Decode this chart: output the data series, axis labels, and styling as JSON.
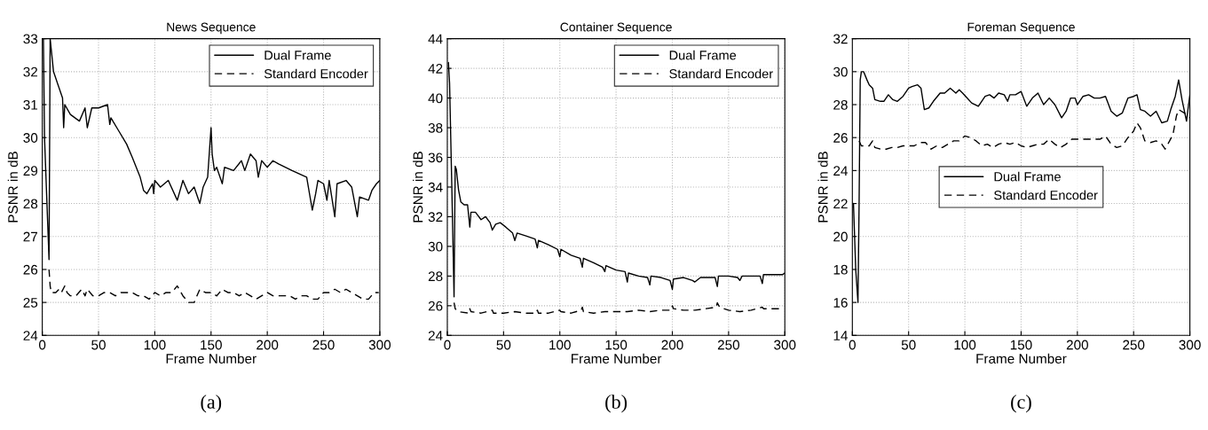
{
  "chart_data": [
    {
      "type": "line",
      "title": "News Sequence",
      "xlabel": "Frame Number",
      "ylabel": "PSNR in dB",
      "annotations": [
        "(a)"
      ],
      "xlim": [
        0,
        300
      ],
      "ylim": [
        24,
        33
      ],
      "xticks": [
        0,
        50,
        100,
        150,
        200,
        250,
        300
      ],
      "yticks": [
        24,
        25,
        26,
        27,
        28,
        29,
        30,
        31,
        32,
        33
      ],
      "grid": true,
      "legend": "top right",
      "marker": "none",
      "series": [
        {
          "name": "Dual Frame",
          "color": "#000000",
          "line_style": "solid",
          "x": [
            1,
            2,
            6,
            7,
            10,
            14,
            18,
            19,
            20,
            25,
            33,
            38,
            40,
            44,
            50,
            58,
            60,
            61,
            68,
            75,
            80,
            87,
            90,
            93,
            98,
            99,
            100,
            105,
            112,
            120,
            125,
            130,
            135,
            140,
            143,
            147,
            150,
            151,
            153,
            155,
            160,
            162,
            170,
            177,
            180,
            185,
            190,
            192,
            195,
            200,
            205,
            210,
            222,
            235,
            240,
            243,
            245,
            250,
            253,
            255,
            260,
            262,
            270,
            275,
            280,
            282,
            290,
            293,
            297,
            300
          ],
          "values": [
            33,
            30,
            26.3,
            33,
            32,
            31.6,
            31.2,
            30.3,
            31,
            30.7,
            30.5,
            30.9,
            30.3,
            30.9,
            30.9,
            31,
            30.4,
            30.6,
            30.2,
            29.8,
            29.4,
            28.8,
            28.4,
            28.3,
            28.6,
            28.3,
            28.7,
            28.5,
            28.7,
            28.1,
            28.7,
            28.3,
            28.5,
            28.0,
            28.5,
            28.8,
            30.3,
            29.5,
            29.0,
            29.1,
            28.6,
            29.1,
            29.0,
            29.3,
            29.0,
            29.5,
            29.3,
            28.8,
            29.3,
            29.1,
            29.3,
            29.2,
            29.0,
            28.8,
            27.8,
            28.3,
            28.7,
            28.6,
            28.1,
            28.7,
            27.6,
            28.6,
            28.7,
            28.5,
            27.6,
            28.2,
            28.1,
            28.4,
            28.6,
            28.7
          ]
        },
        {
          "name": "Standard Encoder",
          "color": "#000000",
          "line_style": "dashed",
          "x": [
            6,
            7,
            8,
            12,
            15,
            17,
            20,
            22,
            25,
            30,
            35,
            38,
            40,
            45,
            50,
            55,
            60,
            65,
            70,
            75,
            80,
            85,
            90,
            95,
            100,
            105,
            110,
            115,
            120,
            125,
            130,
            135,
            140,
            145,
            150,
            155,
            160,
            165,
            170,
            175,
            180,
            185,
            190,
            195,
            200,
            205,
            210,
            215,
            220,
            225,
            230,
            235,
            240,
            245,
            250,
            255,
            260,
            265,
            270,
            275,
            280,
            285,
            290,
            295,
            299
          ],
          "values": [
            26.0,
            25.5,
            25.3,
            25.3,
            25.4,
            25.3,
            25.5,
            25.3,
            25.2,
            25.2,
            25.4,
            25.2,
            25.4,
            25.2,
            25.2,
            25.3,
            25.3,
            25.2,
            25.3,
            25.3,
            25.3,
            25.2,
            25.2,
            25.1,
            25.3,
            25.2,
            25.3,
            25.3,
            25.5,
            25.2,
            25.0,
            25.0,
            25.4,
            25.3,
            25.3,
            25.2,
            25.4,
            25.3,
            25.3,
            25.2,
            25.3,
            25.2,
            25.1,
            25.2,
            25.3,
            25.2,
            25.2,
            25.2,
            25.2,
            25.1,
            25.2,
            25.2,
            25.1,
            25.1,
            25.3,
            25.3,
            25.4,
            25.3,
            25.4,
            25.3,
            25.2,
            25.1,
            25.1,
            25.3,
            25.3
          ]
        }
      ]
    },
    {
      "type": "line",
      "title": "Container Sequence",
      "xlabel": "Frame Number",
      "ylabel": "PSNR in dB",
      "annotations": [
        "(b)"
      ],
      "xlim": [
        0,
        300
      ],
      "ylim": [
        24,
        44
      ],
      "xticks": [
        0,
        50,
        100,
        150,
        200,
        250,
        300
      ],
      "yticks": [
        24,
        26,
        28,
        30,
        32,
        34,
        36,
        38,
        40,
        42,
        44
      ],
      "grid": true,
      "legend": "top right",
      "marker": "none",
      "series": [
        {
          "name": "Dual Frame",
          "color": "#000000",
          "line_style": "solid",
          "x": [
            1,
            2,
            4,
            6,
            7,
            8,
            10,
            12,
            15,
            18,
            20,
            21,
            25,
            30,
            34,
            38,
            40,
            43,
            47,
            52,
            58,
            60,
            62,
            70,
            78,
            80,
            81,
            90,
            98,
            100,
            101,
            110,
            118,
            120,
            121,
            130,
            138,
            140,
            141,
            150,
            158,
            160,
            161,
            170,
            178,
            180,
            181,
            190,
            198,
            200,
            201,
            210,
            218,
            220,
            225,
            238,
            240,
            241,
            250,
            258,
            260,
            262,
            270,
            278,
            280,
            281,
            290,
            298,
            300
          ],
          "values": [
            42.4,
            41,
            34,
            26.6,
            35.4,
            35.2,
            33.8,
            33.0,
            32.8,
            32.8,
            31.3,
            32.3,
            32.3,
            31.8,
            32.0,
            31.6,
            31.1,
            31.5,
            31.6,
            31.3,
            30.9,
            30.4,
            30.9,
            30.7,
            30.5,
            29.9,
            30.4,
            30.1,
            29.8,
            29.3,
            29.8,
            29.4,
            29.2,
            28.6,
            29.2,
            28.9,
            28.6,
            28.3,
            28.7,
            28.4,
            28.3,
            27.6,
            28.2,
            28.0,
            27.9,
            27.4,
            28.0,
            27.9,
            27.7,
            27.1,
            27.8,
            27.9,
            27.7,
            27.6,
            27.9,
            27.9,
            27.3,
            28.0,
            28.0,
            27.9,
            27.7,
            28.0,
            28.0,
            28.0,
            27.5,
            28.1,
            28.1,
            28.1,
            28.2
          ]
        },
        {
          "name": "Standard Encoder",
          "color": "#000000",
          "line_style": "dashed",
          "x": [
            6,
            7,
            10,
            19,
            20,
            21,
            30,
            40,
            41,
            50,
            60,
            70,
            79,
            80,
            81,
            90,
            100,
            101,
            110,
            119,
            120,
            121,
            130,
            140,
            150,
            160,
            170,
            180,
            190,
            199,
            200,
            201,
            210,
            220,
            230,
            239,
            240,
            242,
            250,
            260,
            270,
            280,
            281,
            290,
            299
          ],
          "values": [
            26.2,
            25.8,
            25.6,
            25.5,
            25.8,
            25.6,
            25.5,
            25.7,
            25.5,
            25.5,
            25.6,
            25.5,
            25.5,
            25.7,
            25.5,
            25.5,
            25.7,
            25.6,
            25.5,
            25.7,
            25.9,
            25.6,
            25.5,
            25.6,
            25.6,
            25.6,
            25.7,
            25.6,
            25.7,
            25.7,
            26.0,
            25.8,
            25.7,
            25.7,
            25.8,
            25.9,
            26.2,
            25.9,
            25.7,
            25.6,
            25.7,
            25.9,
            25.8,
            25.8,
            25.8
          ]
        }
      ]
    },
    {
      "type": "line",
      "title": "Foreman Sequence",
      "xlabel": "Frame Number",
      "ylabel": "PSNR in dB",
      "annotations": [
        "(c)"
      ],
      "xlim": [
        0,
        300
      ],
      "ylim": [
        14,
        32
      ],
      "xticks": [
        0,
        50,
        100,
        150,
        200,
        250,
        300
      ],
      "yticks": [
        14,
        16,
        18,
        20,
        22,
        24,
        26,
        28,
        30,
        32
      ],
      "grid": true,
      "legend": "center",
      "marker": "none",
      "series": [
        {
          "name": "Dual Frame",
          "color": "#000000",
          "line_style": "solid",
          "x": [
            1,
            3,
            5,
            6,
            7,
            8,
            10,
            13,
            15,
            18,
            20,
            25,
            28,
            32,
            36,
            40,
            45,
            50,
            53,
            58,
            61,
            64,
            68,
            72,
            78,
            82,
            87,
            92,
            95,
            98,
            102,
            106,
            112,
            118,
            122,
            126,
            130,
            135,
            138,
            140,
            145,
            150,
            155,
            160,
            165,
            170,
            175,
            180,
            186,
            190,
            194,
            198,
            200,
            205,
            210,
            215,
            220,
            225,
            230,
            235,
            240,
            245,
            250,
            253,
            256,
            260,
            265,
            270,
            275,
            280,
            283,
            287,
            290,
            293,
            297,
            300
          ],
          "values": [
            22,
            18,
            16,
            22,
            29.5,
            30.0,
            30.0,
            29.5,
            29.2,
            29.0,
            28.3,
            28.2,
            28.2,
            28.6,
            28.3,
            28.2,
            28.5,
            29.0,
            29.1,
            29.2,
            29.0,
            27.7,
            27.8,
            28.2,
            28.7,
            28.7,
            29.0,
            28.7,
            28.9,
            28.7,
            28.4,
            28.1,
            27.9,
            28.5,
            28.6,
            28.4,
            28.7,
            28.6,
            28.2,
            28.6,
            28.6,
            28.8,
            27.9,
            28.4,
            28.7,
            28.0,
            28.4,
            28.0,
            27.2,
            27.6,
            28.4,
            28.4,
            28.0,
            28.5,
            28.6,
            28.4,
            28.4,
            28.5,
            27.6,
            27.3,
            27.5,
            28.4,
            28.5,
            28.6,
            27.7,
            27.6,
            27.3,
            27.6,
            26.9,
            27.0,
            27.7,
            28.5,
            29.5,
            28.3,
            27.0,
            28.6
          ]
        },
        {
          "name": "Standard Encoder",
          "color": "#000000",
          "line_style": "dashed",
          "x": [
            6,
            8,
            15,
            18,
            20,
            25,
            30,
            35,
            40,
            45,
            50,
            55,
            60,
            65,
            70,
            75,
            80,
            85,
            90,
            95,
            100,
            105,
            110,
            115,
            120,
            125,
            130,
            135,
            140,
            145,
            150,
            155,
            160,
            165,
            170,
            175,
            180,
            185,
            190,
            195,
            200,
            205,
            210,
            215,
            220,
            225,
            230,
            235,
            240,
            245,
            250,
            253,
            256,
            260,
            265,
            270,
            275,
            278,
            282,
            285,
            288,
            290,
            295,
            300
          ],
          "values": [
            25.8,
            25.5,
            25.5,
            25.8,
            25.4,
            25.3,
            25.3,
            25.4,
            25.4,
            25.5,
            25.5,
            25.5,
            25.7,
            25.7,
            25.3,
            25.5,
            25.4,
            25.6,
            25.8,
            25.8,
            26.1,
            26.0,
            25.8,
            25.5,
            25.6,
            25.4,
            25.6,
            25.7,
            25.6,
            25.7,
            25.5,
            25.4,
            25.5,
            25.6,
            25.6,
            25.9,
            25.6,
            25.4,
            25.6,
            25.9,
            25.9,
            25.9,
            25.9,
            25.9,
            25.9,
            26.1,
            25.6,
            25.4,
            25.5,
            26.0,
            26.4,
            26.9,
            26.6,
            25.8,
            25.7,
            25.8,
            25.6,
            25.3,
            25.8,
            26.2,
            27.3,
            27.7,
            27.5,
            27.2
          ]
        }
      ]
    }
  ]
}
